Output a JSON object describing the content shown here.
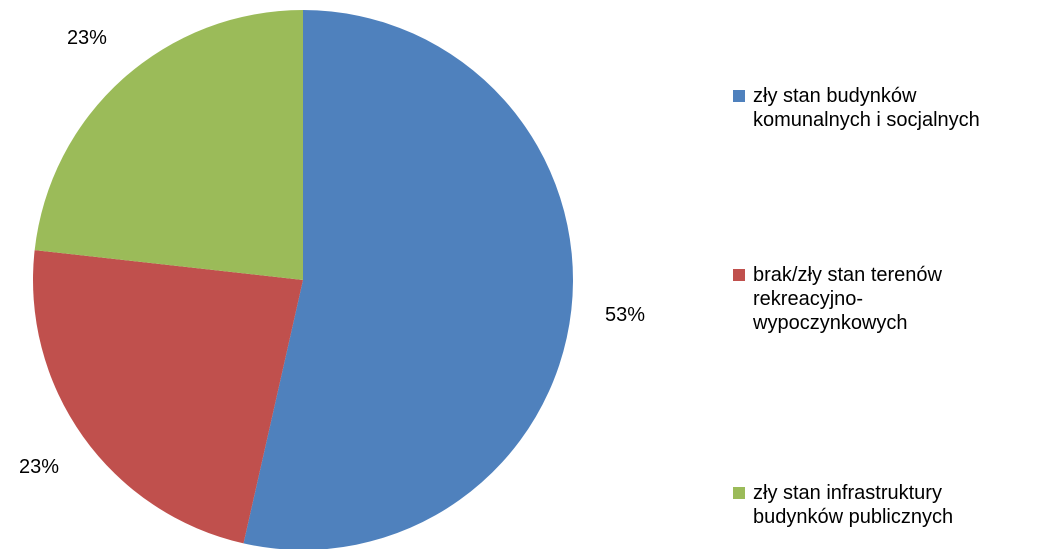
{
  "chart_data": {
    "type": "pie",
    "categories": [
      "zły stan budynków\nkomunalnych i socjalnych",
      "brak/zły stan terenów\nrekreacyjno-\nwypoczynkowych",
      "zły stan infrastruktury\nbudynków publicznych"
    ],
    "values": [
      53,
      23,
      23
    ],
    "value_labels": [
      "53%",
      "23%",
      "23%"
    ],
    "colors": [
      "#4f81bd",
      "#c0504d",
      "#9bbb59"
    ],
    "legend": "right"
  }
}
